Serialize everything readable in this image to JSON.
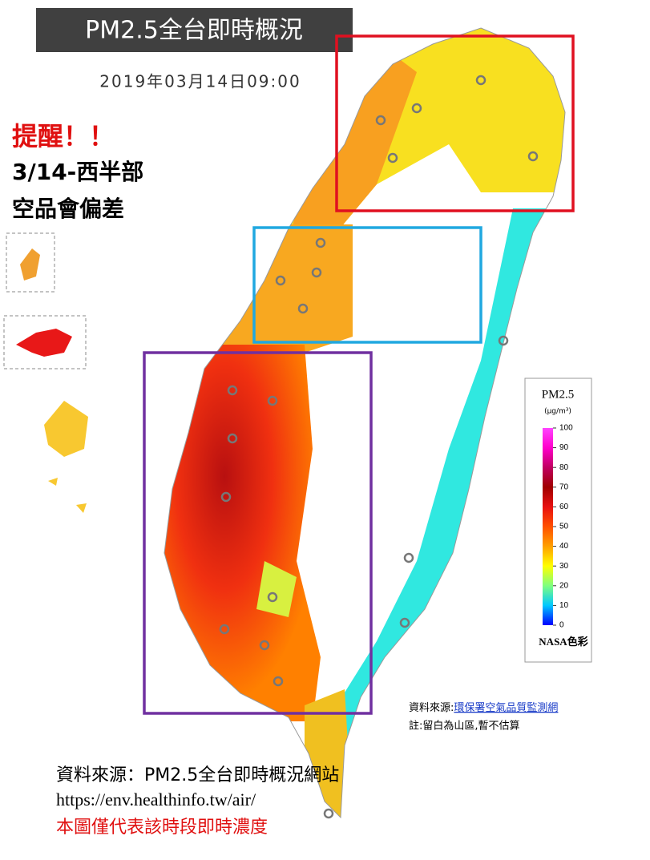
{
  "header": {
    "title": "PM2.5全台即時概況",
    "timestamp": "2019年03月14日09:00"
  },
  "warning": {
    "alert": "提醒！！",
    "lines": [
      "3/14-西半部",
      "空品會偏差"
    ]
  },
  "legend": {
    "title": "PM2.5",
    "unit": "(μg/m³)",
    "lim": [
      0,
      100
    ],
    "ticks": [
      100,
      90,
      80,
      70,
      60,
      50,
      40,
      30,
      20,
      10,
      0
    ],
    "footer": "NASA色彩"
  },
  "notes": {
    "source_label": "資料來源:",
    "source_link": "環保署空氣品質監測網",
    "note": "註:留白為山區,暫不估算"
  },
  "footer": {
    "source": "資料來源：PM2.5全台即時概況網站",
    "url": "https://env.healthinfo.tw/air/",
    "disclaimer": "本圖僅代表該時段即時濃度"
  }
}
